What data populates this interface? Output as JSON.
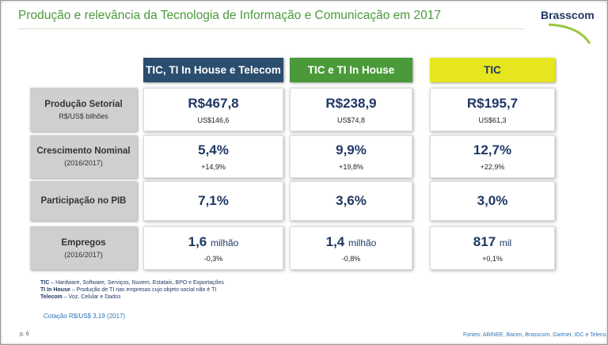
{
  "title": "Produção e relevância da Tecnologia de Informação e Comunicação em 2017",
  "logo": "Brasscom",
  "table": {
    "columns": [
      "TIC, TI In House e Telecom",
      "TIC e TI In House",
      "TIC"
    ],
    "rows": [
      {
        "label": "Produção Setorial",
        "sublabel": "R$/US$ bilhões",
        "cells": [
          {
            "main": "R$467,8",
            "sub": "US$146,6"
          },
          {
            "main": "R$238,9",
            "sub": "US$74,8"
          },
          {
            "main": "R$195,7",
            "sub": "US$61,3"
          }
        ]
      },
      {
        "label": "Crescimento Nominal",
        "sublabel": "(2016/2017)",
        "cells": [
          {
            "main": "5,4%",
            "sub": "+14,9%"
          },
          {
            "main": "9,9%",
            "sub": "+19,8%"
          },
          {
            "main": "12,7%",
            "sub": "+22,9%"
          }
        ]
      },
      {
        "label": "Participação no PIB",
        "cells": [
          {
            "main": "7,1%"
          },
          {
            "main": "3,6%"
          },
          {
            "main": "3,0%"
          }
        ]
      },
      {
        "label": "Empregos",
        "sublabel": "(2016/2017)",
        "cells": [
          {
            "main": "1,6",
            "unit": "milhão",
            "sub": "-0,3%"
          },
          {
            "main": "1,4",
            "unit": "milhão",
            "sub": "-0,8%"
          },
          {
            "main": "817",
            "unit": "mil",
            "sub": "+0,1%"
          }
        ]
      }
    ]
  },
  "notes": [
    {
      "term": "TIC",
      "text": "– Hardware, Software, Serviços, Nuvem, Estatais, BPO e Exportações"
    },
    {
      "term": "TI In House",
      "text": "– Produção de TI nas empresas cujo objeto social não é TI"
    },
    {
      "term": "Telecom",
      "text": "– Voz, Celular e Dados"
    }
  ],
  "exchange_rate": "Cotação R$/US$ 3,19 (2017)",
  "page": "p. 6",
  "sources": "Fontes: ABINEE, Bacen, Brasscom, Gartner, IDC e Teleco."
}
